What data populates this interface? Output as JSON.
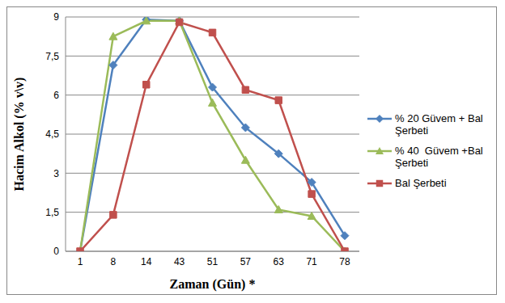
{
  "chart_data": {
    "type": "line",
    "x_label": "Zaman (Gün) *",
    "y_label": "Hacim Alkol (% v\\v)",
    "categories": [
      "1",
      "8",
      "14",
      "43",
      "51",
      "57",
      "63",
      "71",
      "78"
    ],
    "series": [
      {
        "name": "% 20 Güvem + Bal Şerbeti",
        "color": "#4f81bd",
        "marker": "diamond",
        "values": [
          0,
          7.15,
          8.9,
          8.85,
          6.3,
          4.75,
          3.75,
          2.65,
          0.6
        ]
      },
      {
        "name": "% 40  Güvem +Bal Şerbeti",
        "color": "#9bbb59",
        "marker": "triangle",
        "values": [
          0,
          8.25,
          8.85,
          8.85,
          5.7,
          3.5,
          1.6,
          1.35,
          0
        ]
      },
      {
        "name": "Bal Şerbeti",
        "color": "#c0504d",
        "marker": "square",
        "values": [
          0,
          1.4,
          6.4,
          8.8,
          8.4,
          6.2,
          5.8,
          2.2,
          0
        ]
      }
    ],
    "ylim": [
      0,
      9
    ],
    "yticks": [
      0,
      {
        "value": 1.5,
        "label": "1,5"
      },
      3,
      {
        "value": 4.5,
        "label": "4,5"
      },
      6,
      {
        "value": 7.5,
        "label": "7,5"
      },
      9
    ],
    "grid": true,
    "legend": "right"
  }
}
